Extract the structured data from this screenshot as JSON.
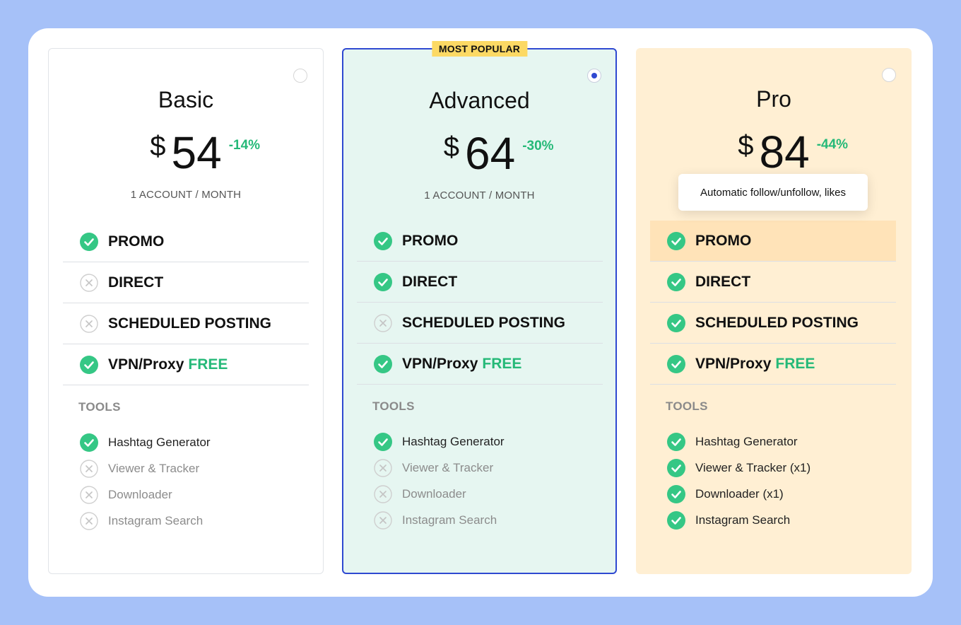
{
  "badge_label": "MOST POPULAR",
  "colors": {
    "accent_blue": "#2f49d1",
    "check_green": "#25b978",
    "badge_yellow": "#fcd964"
  },
  "tooltip_text": "Automatic follow/unfollow, likes",
  "plans": [
    {
      "name": "Basic",
      "currency": "$",
      "price": "54",
      "discount": "-14%",
      "period": "1 ACCOUNT / MONTH",
      "selected": false,
      "features": [
        {
          "label": "PROMO",
          "included": true
        },
        {
          "label": "DIRECT",
          "included": false
        },
        {
          "label": "SCHEDULED POSTING",
          "included": false
        },
        {
          "label": "VPN/Proxy",
          "included": true,
          "extra": "FREE"
        }
      ],
      "tools_title": "TOOLS",
      "tools": [
        {
          "label": "Hashtag Generator",
          "included": true
        },
        {
          "label": "Viewer & Tracker",
          "included": false
        },
        {
          "label": "Downloader",
          "included": false
        },
        {
          "label": "Instagram Search",
          "included": false
        }
      ]
    },
    {
      "name": "Advanced",
      "currency": "$",
      "price": "64",
      "discount": "-30%",
      "period": "1 ACCOUNT / MONTH",
      "selected": true,
      "features": [
        {
          "label": "PROMO",
          "included": true
        },
        {
          "label": "DIRECT",
          "included": true
        },
        {
          "label": "SCHEDULED POSTING",
          "included": false
        },
        {
          "label": "VPN/Proxy",
          "included": true,
          "extra": "FREE"
        }
      ],
      "tools_title": "TOOLS",
      "tools": [
        {
          "label": "Hashtag Generator",
          "included": true
        },
        {
          "label": "Viewer & Tracker",
          "included": false
        },
        {
          "label": "Downloader",
          "included": false
        },
        {
          "label": "Instagram Search",
          "included": false
        }
      ]
    },
    {
      "name": "Pro",
      "currency": "$",
      "price": "84",
      "discount": "-44%",
      "selected": false,
      "features": [
        {
          "label": "PROMO",
          "included": true
        },
        {
          "label": "DIRECT",
          "included": true
        },
        {
          "label": "SCHEDULED POSTING",
          "included": true
        },
        {
          "label": "VPN/Proxy",
          "included": true,
          "extra": "FREE"
        }
      ],
      "tools_title": "TOOLS",
      "tools": [
        {
          "label": "Hashtag Generator",
          "included": true
        },
        {
          "label": "Viewer & Tracker (x1)",
          "included": true
        },
        {
          "label": "Downloader (x1)",
          "included": true
        },
        {
          "label": "Instagram Search",
          "included": true
        }
      ]
    }
  ]
}
